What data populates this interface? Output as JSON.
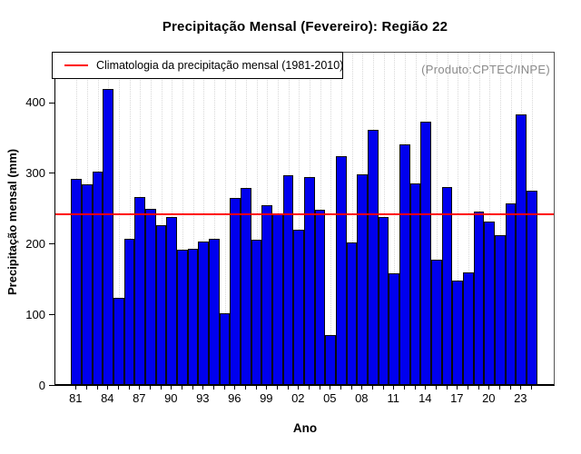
{
  "title": "Precipitação Mensal (Fevereiro): Região 22",
  "xlabel": "Ano",
  "ylabel": "Precipitação mensal (mm)",
  "watermark": "(Produto:CPTEC/INPE)",
  "legend": {
    "label": "Climatologia da precipitação mensal (1981-2010)",
    "line_color": "#ff0000"
  },
  "chart_data": {
    "type": "bar",
    "title": "Precipitação Mensal (Fevereiro): Região 22",
    "xlabel": "Ano",
    "ylabel": "Precipitação mensal (mm)",
    "categories": [
      1981,
      1982,
      1983,
      1984,
      1985,
      1986,
      1987,
      1988,
      1989,
      1990,
      1991,
      1992,
      1993,
      1994,
      1995,
      1996,
      1997,
      1998,
      1999,
      2000,
      2001,
      2002,
      2003,
      2004,
      2005,
      2006,
      2007,
      2008,
      2009,
      2010,
      2011,
      2012,
      2013,
      2014,
      2015,
      2016,
      2017,
      2018,
      2019,
      2020,
      2021,
      2022,
      2023,
      2024
    ],
    "values": [
      290,
      282,
      300,
      418,
      122,
      205,
      264,
      248,
      225,
      236,
      190,
      191,
      202,
      206,
      100,
      263,
      278,
      204,
      253,
      240,
      295,
      219,
      293,
      246,
      70,
      323,
      200,
      297,
      359,
      236,
      157,
      339,
      284,
      371,
      176,
      279,
      146,
      158,
      244,
      230,
      211,
      256,
      381,
      274
    ],
    "climatology_value": 242,
    "climatology_label": "Climatologia da precipitação mensal (1981-2010)",
    "y_ticks": [
      0,
      100,
      200,
      300,
      400
    ],
    "x_tick_labels": [
      "81",
      "84",
      "87",
      "90",
      "93",
      "96",
      "99",
      "02",
      "05",
      "08",
      "11",
      "14",
      "17",
      "20",
      "23"
    ],
    "x_label_every": 3,
    "ylim": [
      0,
      470
    ],
    "grid": "vertical-dotted",
    "legend_position": "top-left",
    "bar_color": "#0000ee",
    "climatology_color": "#ff0000",
    "watermark": "(Produto:CPTEC/INPE)"
  }
}
